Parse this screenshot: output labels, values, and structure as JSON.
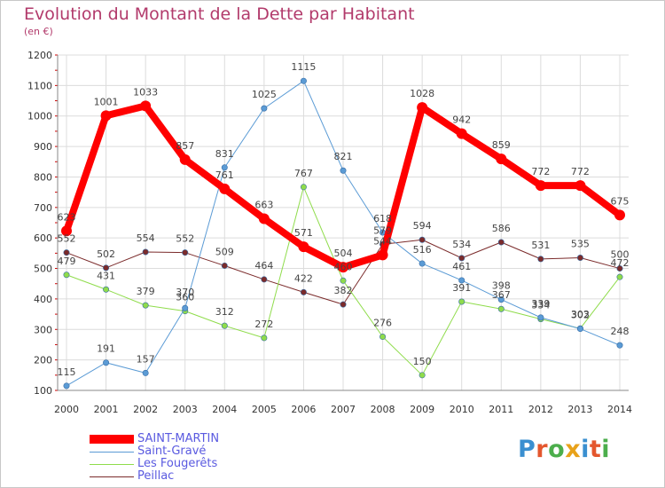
{
  "header": {
    "title": "Evolution du Montant de la Dette par Habitant",
    "unit": "(en €)"
  },
  "logo": {
    "text": "Proxiti"
  },
  "chart_data": {
    "type": "line",
    "title": "Evolution du Montant de la Dette par Habitant",
    "ylabel": "(en €)",
    "xlabel": "",
    "x": [
      "2000",
      "2001",
      "2002",
      "2003",
      "2004",
      "2005",
      "2006",
      "2007",
      "2008",
      "2009",
      "2010",
      "2011",
      "2012",
      "2013",
      "2014"
    ],
    "ylim": [
      100,
      1200
    ],
    "yticks": [
      100,
      200,
      300,
      400,
      500,
      600,
      700,
      800,
      900,
      1000,
      1100,
      1200
    ],
    "grid": true,
    "legend_position": "bottom-left",
    "series": [
      {
        "name": "SAINT-MARTIN",
        "color": "#ff0000",
        "values": [
          623,
          1001,
          1033,
          857,
          761,
          663,
          571,
          504,
          544,
          1028,
          942,
          859,
          772,
          772,
          675
        ]
      },
      {
        "name": "Saint-Gravé",
        "color": "#5b9bd5",
        "values": [
          115,
          191,
          157,
          370,
          831,
          1025,
          1115,
          821,
          618,
          516,
          461,
          398,
          339,
          302,
          248
        ]
      },
      {
        "name": "Les Fougerêts",
        "color": "#8fdc4b",
        "values": [
          479,
          431,
          379,
          360,
          312,
          272,
          767,
          460,
          276,
          150,
          391,
          367,
          334,
          303,
          472
        ]
      },
      {
        "name": "Peillac",
        "color": "#7b2b2b",
        "values": [
          552,
          502,
          554,
          552,
          509,
          464,
          422,
          382,
          579,
          594,
          534,
          586,
          531,
          535,
          500
        ]
      }
    ]
  }
}
